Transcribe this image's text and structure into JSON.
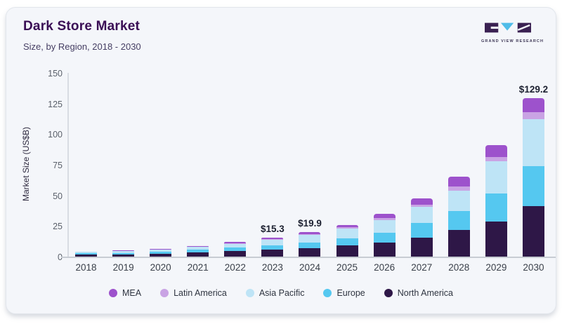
{
  "header": {
    "title": "Dark Store Market",
    "subtitle": "Size, by Region, 2018 - 2030",
    "logo_text": "GRAND VIEW RESEARCH"
  },
  "colors": {
    "card_background": "#f4f6fa",
    "title": "#3a0e55",
    "logo_dark": "#3a2152",
    "logo_blue": "#4fbce8",
    "axis_line": "#d8dce2",
    "baseline": "#c7ccd3"
  },
  "chart_data": {
    "type": "bar",
    "stacked": true,
    "title": "Dark Store Market",
    "subtitle": "Size, by Region, 2018 - 2030",
    "xlabel": "",
    "ylabel": "Market Size (US$B)",
    "ylim": [
      0,
      150
    ],
    "yticks": [
      0,
      25,
      50,
      75,
      100,
      125,
      150
    ],
    "grid": false,
    "legend_position": "bottom",
    "categories": [
      "2018",
      "2019",
      "2020",
      "2021",
      "2022",
      "2023",
      "2024",
      "2025",
      "2026",
      "2027",
      "2028",
      "2029",
      "2030"
    ],
    "series": [
      {
        "name": "North America",
        "color": "#2e1747",
        "values": [
          1.6,
          1.9,
          2.4,
          3.3,
          4.4,
          5.6,
          7.1,
          9.0,
          11.6,
          15.4,
          21.5,
          28.6,
          41.5
        ]
      },
      {
        "name": "Europe",
        "color": "#55c8f0",
        "values": [
          1.1,
          1.2,
          1.6,
          2.2,
          2.9,
          3.6,
          4.5,
          6.0,
          7.9,
          12.0,
          16.0,
          22.9,
          32.5
        ]
      },
      {
        "name": "Asia Pacific",
        "color": "#bee4f6",
        "values": [
          1.1,
          1.3,
          1.7,
          2.4,
          3.3,
          4.3,
          5.9,
          7.7,
          10.4,
          13.3,
          16.5,
          26.3,
          38.0
        ]
      },
      {
        "name": "Latin America",
        "color": "#c9a3e4",
        "values": [
          0.2,
          0.2,
          0.3,
          0.4,
          0.5,
          0.7,
          0.9,
          1.1,
          1.5,
          1.9,
          3.2,
          3.4,
          5.8
        ]
      },
      {
        "name": "MEA",
        "color": "#9d52cc",
        "values": [
          0.3,
          0.4,
          0.4,
          0.6,
          0.9,
          1.1,
          1.5,
          2.0,
          3.4,
          5.0,
          8.0,
          9.8,
          11.4
        ]
      }
    ],
    "totals": [
      4.3,
      5.0,
      6.4,
      8.9,
      12.0,
      15.3,
      19.9,
      25.8,
      34.8,
      47.6,
      65.2,
      91.0,
      129.2
    ],
    "bar_labels": [
      "",
      "",
      "",
      "",
      "",
      "$15.3",
      "$19.9",
      "",
      "",
      "",
      "",
      "",
      "$129.2"
    ],
    "legend_order": [
      "MEA",
      "Latin America",
      "Asia Pacific",
      "Europe",
      "North America"
    ]
  }
}
